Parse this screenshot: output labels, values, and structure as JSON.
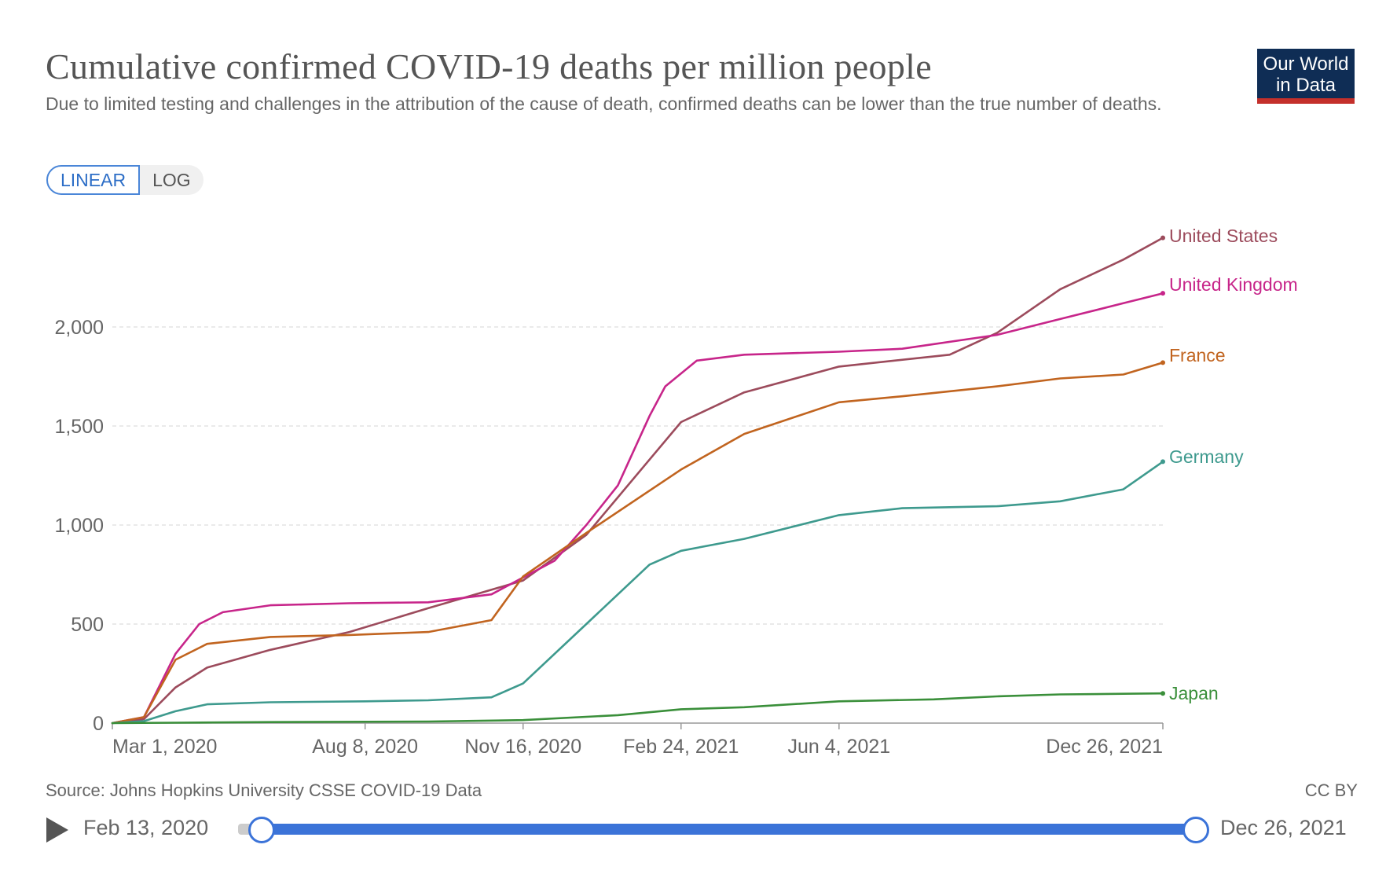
{
  "header": {
    "title": "Cumulative confirmed COVID-19 deaths per million people",
    "subtitle": "Due to limited testing and challenges in the attribution of the cause of death, confirmed deaths can be lower than the true number of deaths.",
    "logo_line1": "Our World",
    "logo_line2": "in Data"
  },
  "scale_toggle": {
    "linear_label": "LINEAR",
    "log_label": "LOG",
    "active": "LINEAR"
  },
  "footer": {
    "source": "Source: Johns Hopkins University CSSE COVID-19 Data",
    "license": "CC BY"
  },
  "timeline": {
    "start_label": "Feb 13, 2020",
    "end_label": "Dec 26, 2021"
  },
  "colors": {
    "United States": "#9c4b5c",
    "United Kingdom": "#c7258a",
    "France": "#c1641f",
    "Germany": "#3e9a8e",
    "Japan": "#3a8f3a",
    "grid": "#dddddd",
    "axis": "#999999"
  },
  "chart_data": {
    "type": "line",
    "title": "Cumulative confirmed COVID-19 deaths per million people",
    "xlabel": "",
    "ylabel": "",
    "x_unit": "days since Mar 1, 2020",
    "xlim": [
      0,
      665
    ],
    "ylim": [
      0,
      2500
    ],
    "yticks": [
      0,
      500,
      1000,
      1500,
      2000
    ],
    "ytick_labels": [
      "0",
      "500",
      "1,000",
      "1,500",
      "2,000"
    ],
    "xticks": [
      0,
      160,
      260,
      360,
      460,
      665
    ],
    "xtick_labels": [
      "Mar 1, 2020",
      "Aug 8, 2020",
      "Nov 16, 2020",
      "Feb 24, 2021",
      "Jun 4, 2021",
      "Dec 26, 2021"
    ],
    "grid": true,
    "legend": "line-end labels",
    "series": [
      {
        "name": "United States",
        "x": [
          0,
          20,
          40,
          60,
          100,
          150,
          200,
          260,
          300,
          340,
          360,
          400,
          460,
          530,
          560,
          600,
          640,
          665
        ],
        "values": [
          0,
          20,
          180,
          280,
          370,
          460,
          580,
          720,
          950,
          1330,
          1520,
          1670,
          1800,
          1860,
          1970,
          2190,
          2340,
          2450
        ]
      },
      {
        "name": "United Kingdom",
        "x": [
          0,
          20,
          40,
          55,
          70,
          100,
          150,
          200,
          240,
          280,
          300,
          320,
          340,
          350,
          370,
          400,
          460,
          500,
          560,
          600,
          640,
          665
        ],
        "values": [
          0,
          30,
          350,
          500,
          560,
          595,
          605,
          610,
          650,
          820,
          1000,
          1200,
          1550,
          1700,
          1830,
          1860,
          1875,
          1890,
          1960,
          2040,
          2120,
          2170
        ]
      },
      {
        "name": "France",
        "x": [
          0,
          20,
          40,
          60,
          100,
          150,
          200,
          240,
          260,
          300,
          360,
          400,
          460,
          500,
          560,
          600,
          640,
          665
        ],
        "values": [
          0,
          30,
          320,
          400,
          435,
          445,
          460,
          520,
          740,
          960,
          1280,
          1460,
          1620,
          1650,
          1700,
          1740,
          1760,
          1820
        ]
      },
      {
        "name": "Germany",
        "x": [
          0,
          20,
          40,
          60,
          100,
          160,
          200,
          240,
          260,
          300,
          340,
          360,
          400,
          460,
          500,
          560,
          600,
          640,
          665
        ],
        "values": [
          0,
          10,
          60,
          95,
          105,
          110,
          115,
          130,
          200,
          500,
          800,
          870,
          930,
          1050,
          1085,
          1095,
          1120,
          1180,
          1320
        ]
      },
      {
        "name": "Japan",
        "x": [
          0,
          40,
          100,
          200,
          260,
          320,
          360,
          400,
          460,
          520,
          560,
          600,
          640,
          665
        ],
        "values": [
          0,
          2,
          5,
          8,
          15,
          40,
          70,
          80,
          110,
          120,
          135,
          145,
          148,
          150
        ]
      }
    ]
  }
}
